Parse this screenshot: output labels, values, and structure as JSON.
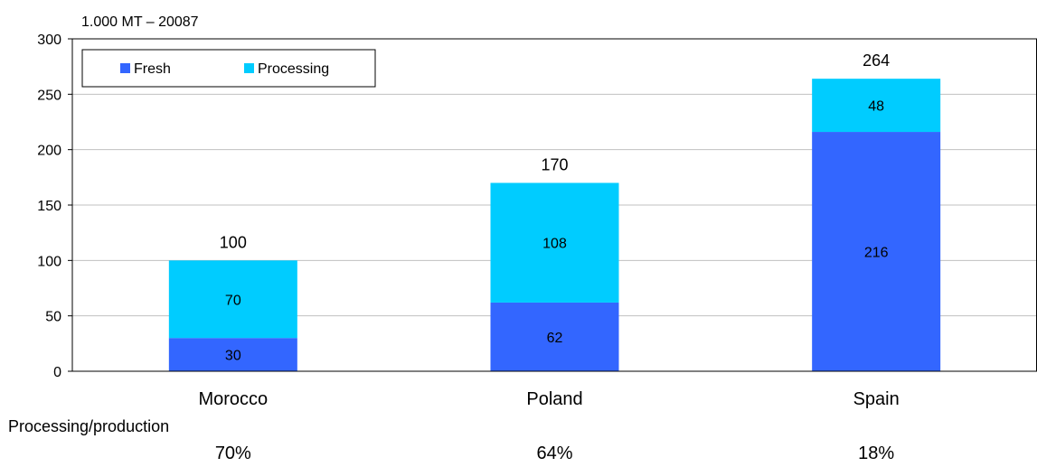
{
  "chart_data": {
    "type": "bar",
    "stacked": true,
    "unit_label": "1.000 MT – 20087",
    "categories": [
      "Morocco",
      "Poland",
      "Spain"
    ],
    "series": [
      {
        "name": "Fresh",
        "color": "#3366FF",
        "values": [
          30,
          62,
          216
        ],
        "labels": [
          "30",
          "62",
          "216"
        ]
      },
      {
        "name": "Processing",
        "color": "#00CCFF",
        "values": [
          70,
          108,
          48
        ],
        "labels": [
          "70",
          "108",
          "48"
        ]
      }
    ],
    "totals": [
      "100",
      "170",
      "264"
    ],
    "ylim": [
      0,
      300
    ],
    "yticks": [
      "0",
      "50",
      "100",
      "150",
      "200",
      "250",
      "300"
    ],
    "grid": true,
    "legend_position": "top-left"
  },
  "footer": {
    "title": "Processing/production",
    "values": [
      "70%",
      "64%",
      "18%"
    ]
  }
}
